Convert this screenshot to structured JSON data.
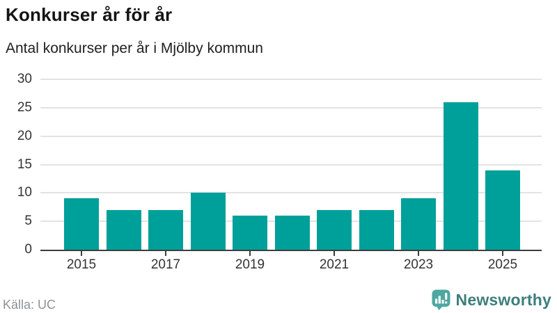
{
  "header": {
    "title": "Konkurser år för år",
    "subtitle": "Antal konkurser per år i Mjölby kommun"
  },
  "chart_data": {
    "type": "bar",
    "title": "Konkurser år för år",
    "subtitle": "Antal konkurser per år i Mjölby kommun",
    "categories": [
      "2015",
      "2016",
      "2017",
      "2018",
      "2019",
      "2020",
      "2021",
      "2022",
      "2023",
      "2024",
      "2025"
    ],
    "values": [
      9,
      7,
      7,
      10,
      6,
      6,
      7,
      7,
      9,
      26,
      14
    ],
    "xlabel": "",
    "ylabel": "",
    "ylim": [
      0,
      30
    ],
    "yticks": [
      0,
      5,
      10,
      15,
      20,
      25,
      30
    ],
    "xticks_shown": [
      "2015",
      "2017",
      "2019",
      "2021",
      "2023",
      "2025"
    ],
    "grid": true,
    "legend": false,
    "bar_color": "#00a09a",
    "gridline_color": "#e3e3e3",
    "axis_color": "#3d3d3d"
  },
  "footer": {
    "source": "Källa: UC",
    "brand": "Newsworthy"
  },
  "colors": {
    "bar_teal": "#00a09a",
    "logo_teal": "#4ea7a1",
    "brand_text": "#3e7e7c",
    "source_gray": "#8c9196"
  }
}
